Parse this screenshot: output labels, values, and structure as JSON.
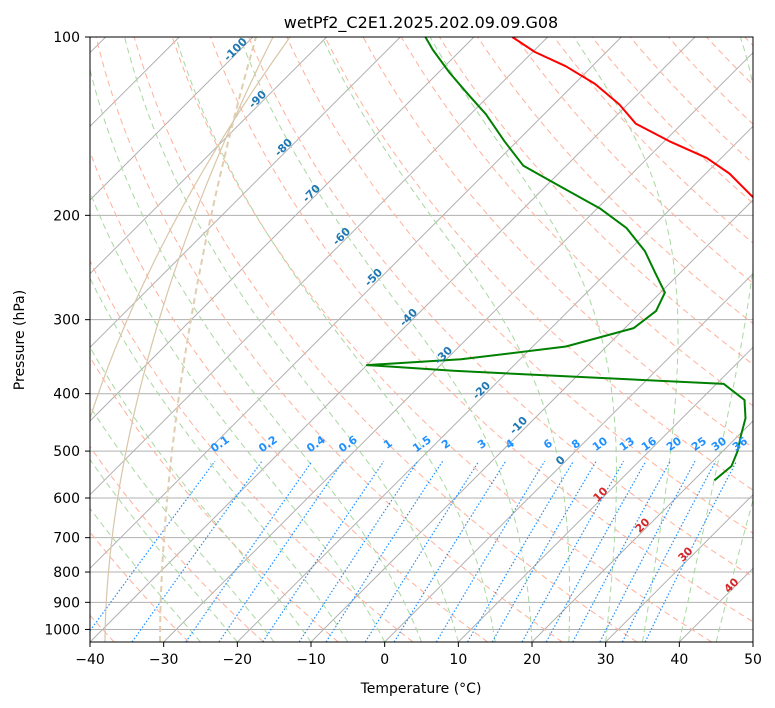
{
  "chart_data": {
    "type": "line",
    "title": "wetPf2_C2E1.2025.202.09.09.G08",
    "xlabel": "Temperature (°C)",
    "ylabel": "Pressure (hPa)",
    "xlim": [
      -40,
      50
    ],
    "ylim": [
      1050,
      100
    ],
    "yscale": "log",
    "skew": true,
    "x_ticks": [
      "−40",
      "−30",
      "−20",
      "−10",
      "0",
      "10",
      "20",
      "30",
      "40",
      "50"
    ],
    "y_ticks": [
      "100",
      "200",
      "300",
      "400",
      "500",
      "600",
      "700",
      "800",
      "900",
      "1000"
    ],
    "series": [
      {
        "role": "temperature",
        "color": "#ff0000",
        "points": [
          [
            31.5,
            560
          ],
          [
            28.5,
            520
          ],
          [
            26.6,
            490
          ],
          [
            25.7,
            460
          ],
          [
            25.5,
            430
          ],
          [
            24.5,
            405
          ],
          [
            23.8,
            385
          ],
          [
            23.2,
            370
          ],
          [
            22.5,
            350
          ],
          [
            19.2,
            320
          ],
          [
            16.4,
            300
          ],
          [
            12.1,
            270
          ],
          [
            7.2,
            245
          ],
          [
            1.3,
            220
          ],
          [
            -5.4,
            200
          ],
          [
            -10.9,
            185
          ],
          [
            -16.8,
            170
          ],
          [
            -22.0,
            160
          ],
          [
            -29.3,
            150
          ],
          [
            -36.3,
            140
          ],
          [
            -41.1,
            130
          ],
          [
            -47.2,
            120
          ],
          [
            -53.6,
            112
          ],
          [
            -59.7,
            106
          ],
          [
            -64.8,
            100
          ]
        ]
      },
      {
        "role": "dewpoint",
        "color": "#008000",
        "points": [
          [
            22.8,
            560
          ],
          [
            23.2,
            530
          ],
          [
            22.0,
            500
          ],
          [
            20.3,
            470
          ],
          [
            18.6,
            440
          ],
          [
            16.0,
            410
          ],
          [
            11.0,
            385
          ],
          [
            -27.5,
            366
          ],
          [
            -36.5,
            360
          ],
          [
            -40.0,
            358
          ],
          [
            -28.0,
            350
          ],
          [
            -15.5,
            333
          ],
          [
            -8.8,
            310
          ],
          [
            -8.1,
            290
          ],
          [
            -9.4,
            270
          ],
          [
            -13.4,
            250
          ],
          [
            -17.7,
            230
          ],
          [
            -23.4,
            210
          ],
          [
            -29.5,
            195
          ],
          [
            -38.4,
            178
          ],
          [
            -45.8,
            165
          ],
          [
            -51.7,
            150
          ],
          [
            -57.9,
            135
          ],
          [
            -63.0,
            125
          ],
          [
            -68.4,
            115
          ],
          [
            -73.9,
            105
          ],
          [
            -76.6,
            100
          ]
        ]
      }
    ],
    "mixing_ratio_labels": [
      "0.1",
      "0.2",
      "0.4",
      "0.6",
      "1",
      "1.5",
      "2",
      "3",
      "4",
      "6",
      "8",
      "10",
      "13",
      "16",
      "20",
      "25",
      "30",
      "36"
    ],
    "dry_adiabat_labels": [
      "10",
      "20",
      "30",
      "40"
    ],
    "moist_adiabat_labels": [
      "-100",
      "-90",
      "-80",
      "-70",
      "-60",
      "-50",
      "-40",
      "-30",
      "-20",
      "-10",
      "0"
    ],
    "grid": true,
    "legend": false
  }
}
